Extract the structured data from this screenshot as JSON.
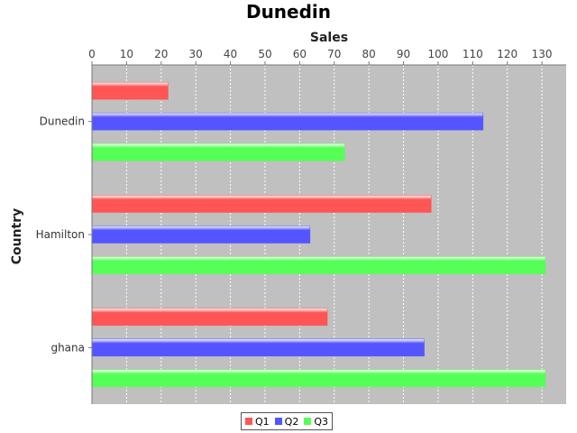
{
  "chart_data": {
    "type": "bar",
    "orientation": "horizontal",
    "title": "Dunedin",
    "xlabel": "Sales",
    "ylabel": "Country",
    "categories": [
      "Dunedin",
      "Hamilton",
      "ghana"
    ],
    "series": [
      {
        "name": "Q1",
        "color": "#ff5555",
        "values": [
          22,
          98,
          68
        ]
      },
      {
        "name": "Q2",
        "color": "#5555ff",
        "values": [
          113,
          63,
          96
        ]
      },
      {
        "name": "Q3",
        "color": "#55ff55",
        "values": [
          73,
          131,
          131
        ]
      }
    ],
    "xlim": [
      0,
      137
    ],
    "xticks": [
      0,
      10,
      20,
      30,
      40,
      50,
      60,
      70,
      80,
      90,
      100,
      110,
      120,
      130
    ],
    "grid": true,
    "legend": "bottom"
  }
}
